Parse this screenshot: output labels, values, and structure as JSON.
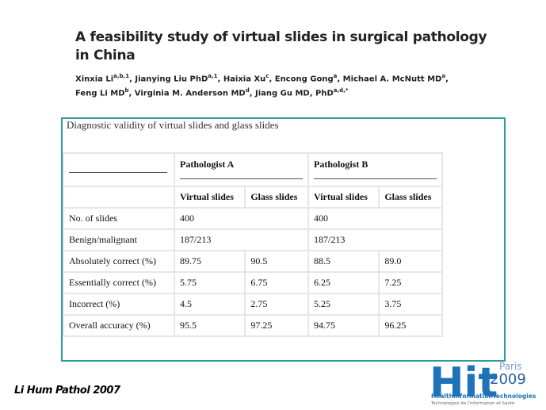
{
  "header": {
    "title_lines": [
      "A feasibility study of virtual slides in surgical pathology",
      "in China"
    ],
    "author_lines": [
      [
        {
          "name": "Xinxia Li",
          "sup": "a,b,1"
        },
        {
          "name": "Jianying Liu PhD",
          "sup": "a,1"
        },
        {
          "name": "Haixia Xu",
          "sup": "c"
        },
        {
          "name": "Encong Gong",
          "sup": "a"
        },
        {
          "name": "Michael A. McNutt MD",
          "sup": "a"
        }
      ],
      [
        {
          "name": "Feng Li MD",
          "sup": "b"
        },
        {
          "name": "Virginia M. Anderson MD",
          "sup": "d"
        },
        {
          "name": "Jiang Gu MD, PhD",
          "sup": "a,d,*"
        }
      ]
    ]
  },
  "table": {
    "caption": "Diagnostic validity of virtual slides and glass slides",
    "groups": [
      "Pathologist A",
      "Pathologist B"
    ],
    "columns": [
      "Virtual slides",
      "Glass slides",
      "Virtual slides",
      "Glass slides"
    ],
    "rows": [
      [
        "No. of slides",
        "400",
        "400"
      ],
      [
        "Benign/malignant",
        "187/213",
        "187/213"
      ],
      [
        "Absolutely correct (%)",
        "89.75",
        "90.5",
        "88.5",
        "89.0"
      ],
      [
        "Essentially correct (%)",
        "5.75",
        "6.75",
        "6.25",
        "7.25"
      ],
      [
        "Incorrect (%)",
        "4.5",
        "2.75",
        "5.25",
        "3.75"
      ],
      [
        "Overall accuracy (%)",
        "95.5",
        "97.25",
        "94.75",
        "96.25"
      ]
    ]
  },
  "citation": "Li  Hum Pathol 2007",
  "logo": {
    "mark": "Hit",
    "city": "Paris",
    "year": "2009",
    "name": "HealthInformationTechnologies",
    "subtitle": "Technologies de l'information et Santé"
  }
}
